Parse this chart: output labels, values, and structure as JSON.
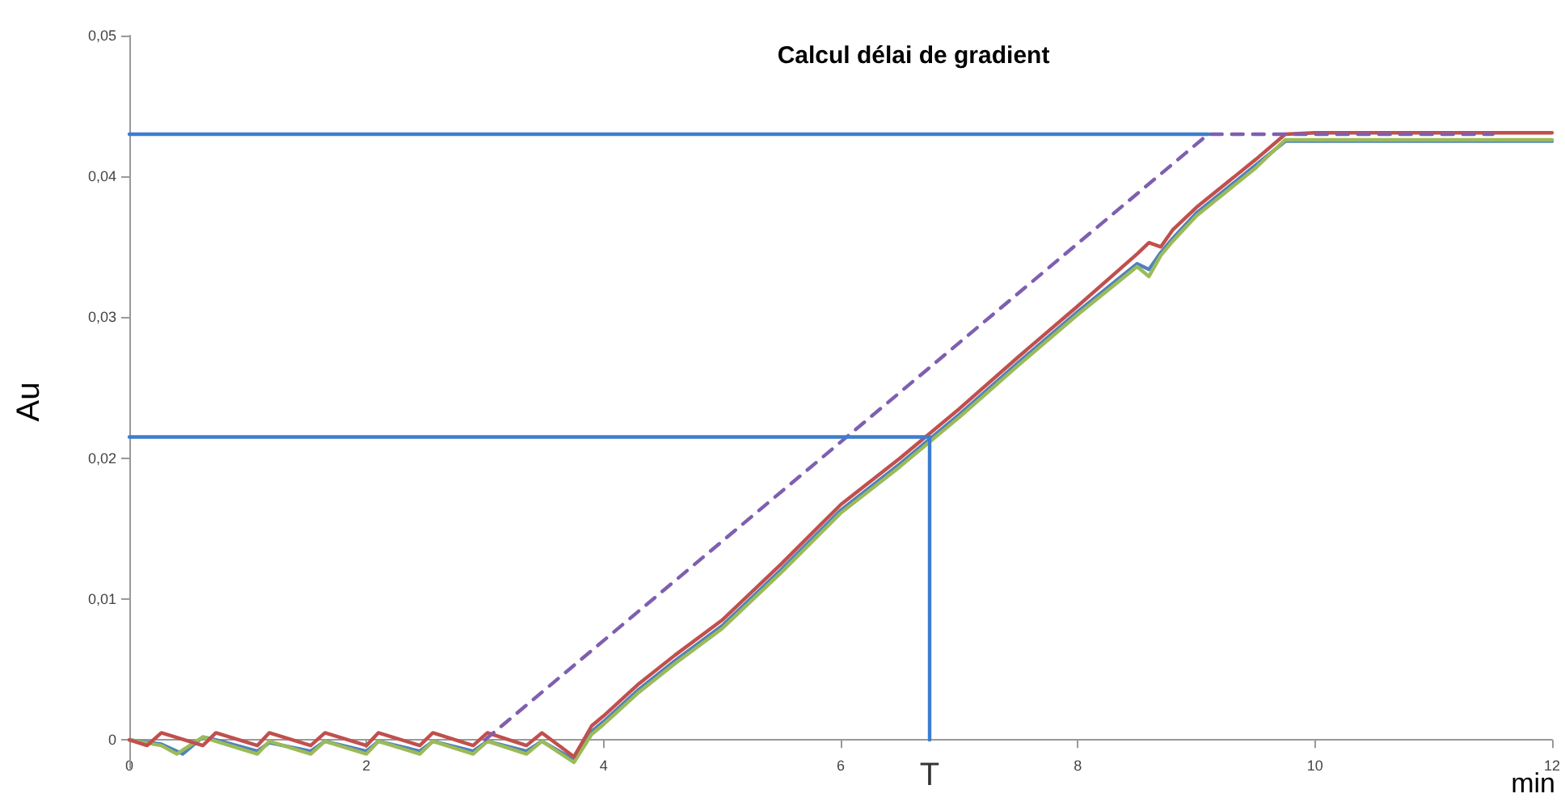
{
  "chart_data": {
    "type": "line",
    "title": "Calcul délai de gradient",
    "xlabel": "min",
    "ylabel": "Au",
    "xlim": [
      0,
      12
    ],
    "xticks": [
      0,
      2,
      4,
      6,
      8,
      10,
      12
    ],
    "ylim": [
      -0.002,
      0.05
    ],
    "yticks": [
      {
        "value": 0,
        "label": "0"
      },
      {
        "value": 0.01,
        "label": "0,01"
      },
      {
        "value": 0.02,
        "label": "0,02"
      },
      {
        "value": 0.03,
        "label": "0,03"
      },
      {
        "value": 0.04,
        "label": "0,04"
      },
      {
        "value": 0.05,
        "label": "0,05"
      }
    ],
    "marker": "none",
    "line_style": "solid",
    "annotations": [
      {
        "text": "T",
        "x": 6.75,
        "y": 0
      }
    ],
    "series": [
      {
        "color": "#4f81bd",
        "x": [
          0,
          0.27,
          0.45,
          0.62,
          0.73,
          1.08,
          1.18,
          1.53,
          1.65,
          2.0,
          2.1,
          2.45,
          2.56,
          2.9,
          3.02,
          3.35,
          3.48,
          3.75,
          3.9,
          4.0,
          4.3,
          4.6,
          5.0,
          5.5,
          6.0,
          6.5,
          7.0,
          7.5,
          8.0,
          8.5,
          8.6,
          8.7,
          8.8,
          9.0,
          9.5,
          9.75,
          10,
          11,
          12
        ],
        "values": [
          0,
          -0.0003,
          -0.001,
          0.0002,
          0,
          -0.0008,
          -0.0002,
          -0.0008,
          -0.0001,
          -0.0008,
          -0.0001,
          -0.0008,
          -0.0001,
          -0.0008,
          -0.0001,
          -0.0008,
          -0.0001,
          -0.0014,
          0.0006,
          0.0013,
          0.0036,
          0.0056,
          0.0081,
          0.0121,
          0.0163,
          0.0196,
          0.0231,
          0.0268,
          0.0304,
          0.0338,
          0.0334,
          0.0346,
          0.0356,
          0.0374,
          0.0408,
          0.0425,
          0.0425,
          0.0425,
          0.0425
        ]
      },
      {
        "color": "#9bbb59",
        "x": [
          0,
          0.27,
          0.4,
          0.62,
          0.73,
          1.08,
          1.18,
          1.53,
          1.65,
          2.0,
          2.1,
          2.45,
          2.56,
          2.9,
          3.02,
          3.35,
          3.48,
          3.75,
          3.9,
          4.0,
          4.3,
          4.6,
          5.0,
          5.5,
          6.0,
          6.5,
          7.0,
          7.5,
          8.0,
          8.5,
          8.6,
          8.7,
          8.8,
          9.0,
          9.5,
          9.75,
          10,
          11,
          12
        ],
        "values": [
          0,
          -0.0004,
          -0.001,
          0.0002,
          -0.0001,
          -0.001,
          -0.0001,
          -0.001,
          -0.0001,
          -0.001,
          -0.0001,
          -0.001,
          -0.0001,
          -0.001,
          -0.0001,
          -0.001,
          -0.0001,
          -0.0016,
          0.0004,
          0.0011,
          0.0034,
          0.0054,
          0.0079,
          0.0119,
          0.0161,
          0.0194,
          0.0229,
          0.0266,
          0.0302,
          0.0336,
          0.0329,
          0.0344,
          0.0354,
          0.0372,
          0.0406,
          0.0426,
          0.0426,
          0.0426,
          0.0426
        ]
      },
      {
        "color": "#c0504d",
        "x": [
          0,
          0.15,
          0.27,
          0.62,
          0.73,
          1.08,
          1.18,
          1.53,
          1.65,
          2.0,
          2.1,
          2.45,
          2.56,
          2.9,
          3.02,
          3.35,
          3.48,
          3.75,
          3.9,
          4.0,
          4.3,
          4.6,
          5.0,
          5.5,
          6.0,
          6.5,
          7.0,
          7.5,
          8.0,
          8.5,
          8.6,
          8.7,
          8.8,
          9.0,
          9.5,
          9.75,
          10,
          11,
          12
        ],
        "values": [
          0,
          -0.0004,
          0.0005,
          -0.0004,
          0.0005,
          -0.0004,
          0.0005,
          -0.0004,
          0.0005,
          -0.0004,
          0.0005,
          -0.0004,
          0.0005,
          -0.0004,
          0.0005,
          -0.0004,
          0.0005,
          -0.0012,
          0.001,
          0.0017,
          0.004,
          0.006,
          0.0085,
          0.0125,
          0.0167,
          0.02,
          0.0235,
          0.0272,
          0.0308,
          0.0345,
          0.0353,
          0.035,
          0.0362,
          0.0378,
          0.0412,
          0.043,
          0.0431,
          0.0431,
          0.0431
        ]
      },
      {
        "color": "#7f5fb0",
        "line_style": "dashed",
        "x": [
          3.0,
          9.1,
          11.5
        ],
        "values": [
          0,
          0.043,
          0.043
        ]
      },
      {
        "color": "#3c7dd0",
        "x": [
          0,
          9.1
        ],
        "values": [
          0.043,
          0.043
        ]
      },
      {
        "color": "#3c7dd0",
        "x": [
          0,
          6.75,
          6.75
        ],
        "values": [
          0.0215,
          0.0215,
          0
        ]
      }
    ]
  }
}
